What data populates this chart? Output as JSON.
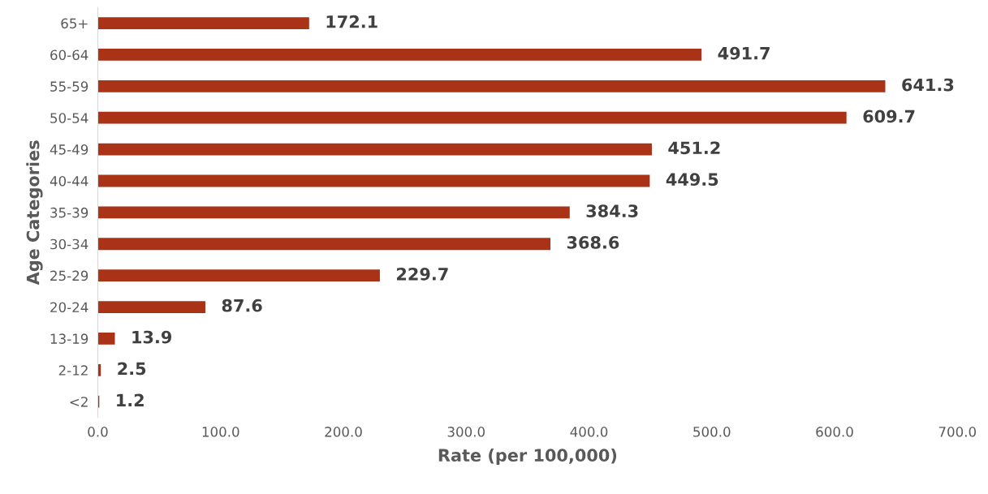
{
  "chart_data": {
    "type": "bar",
    "orientation": "horizontal",
    "xlabel": "Rate (per 100,000)",
    "ylabel": "Age Categories",
    "categories": [
      "65+",
      "60-64",
      "55-59",
      "50-54",
      "45-49",
      "40-44",
      "35-39",
      "30-34",
      "25-29",
      "20-24",
      "13-19",
      "2-12",
      "<2"
    ],
    "values": [
      172.1,
      491.7,
      641.3,
      609.7,
      451.2,
      449.5,
      384.3,
      368.6,
      229.7,
      87.6,
      13.9,
      2.5,
      1.2
    ],
    "color": "#a93217",
    "xlim": [
      0,
      700
    ],
    "xticks": [
      {
        "value": 0,
        "label": "0.0"
      },
      {
        "value": 100,
        "label": "100.0"
      },
      {
        "value": 200,
        "label": "200.0"
      },
      {
        "value": 300,
        "label": "300.0"
      },
      {
        "value": 400,
        "label": "400.0"
      },
      {
        "value": 500,
        "label": "500.0"
      },
      {
        "value": 600,
        "label": "600.0"
      },
      {
        "value": 700,
        "label": "700.0"
      }
    ],
    "data_labels": true,
    "grid": false
  }
}
